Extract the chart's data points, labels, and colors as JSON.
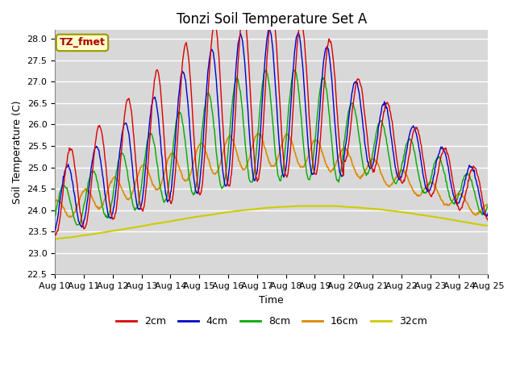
{
  "title": "Tonzi Soil Temperature Set A",
  "xlabel": "Time",
  "ylabel": "Soil Temperature (C)",
  "ylim": [
    22.5,
    28.2
  ],
  "xlim": [
    0,
    15
  ],
  "x_tick_labels": [
    "Aug 10",
    "Aug 11",
    "Aug 12",
    "Aug 13",
    "Aug 14",
    "Aug 15",
    "Aug 16",
    "Aug 17",
    "Aug 18",
    "Aug 19",
    "Aug 20",
    "Aug 21",
    "Aug 22",
    "Aug 23",
    "Aug 24",
    "Aug 25"
  ],
  "colors": {
    "2cm": "#dd0000",
    "4cm": "#0000cc",
    "8cm": "#00aa00",
    "16cm": "#dd8800",
    "32cm": "#cccc00"
  },
  "annotation_text": "TZ_fmet",
  "annotation_color": "#aa0000",
  "annotation_bg": "#ffffcc",
  "annotation_edge": "#999900",
  "plot_bg": "#d8d8d8",
  "grid_color": "#ffffff",
  "title_fontsize": 12,
  "axis_fontsize": 9,
  "tick_fontsize": 8
}
